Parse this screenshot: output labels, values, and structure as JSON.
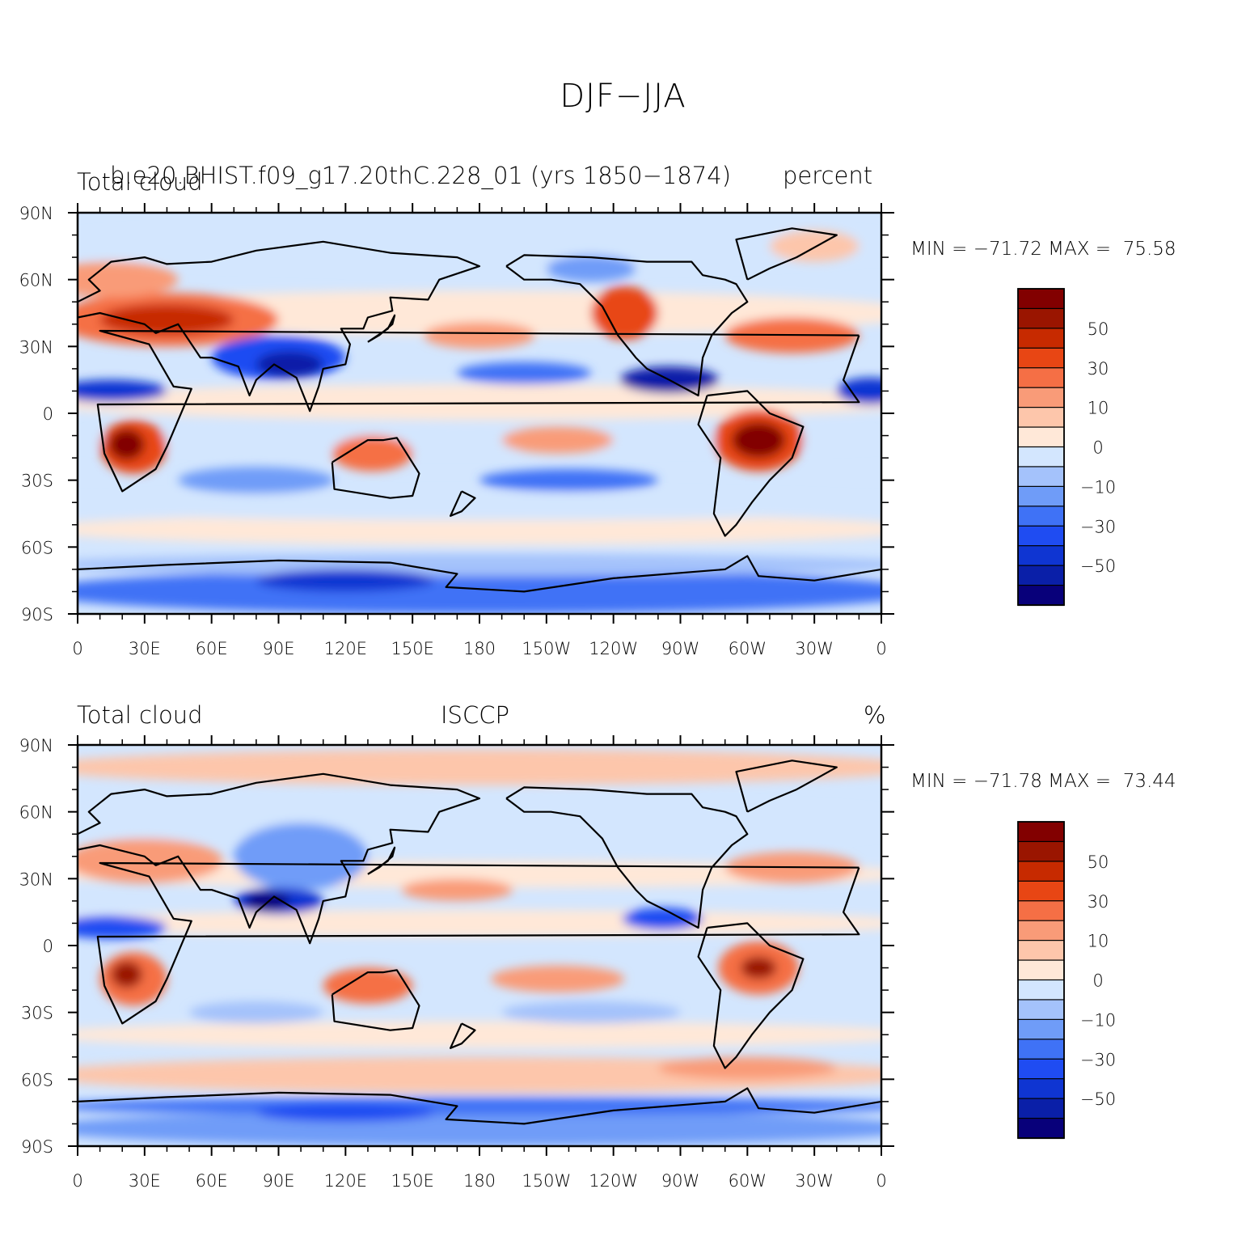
{
  "figure": {
    "title": "DJF−JJA"
  },
  "colors": {
    "levels": [
      "#08007a",
      "#0a1fa8",
      "#0f35d2",
      "#1f4cf2",
      "#3f72f6",
      "#6f9cf8",
      "#a4c2fb",
      "#d3e6fe",
      "#ffe8d8",
      "#fdc6ab",
      "#f99b78",
      "#f56f45",
      "#e84614",
      "#c72a00",
      "#9a1500",
      "#820000"
    ]
  },
  "panels": [
    {
      "left_label": "Total cloud",
      "center_label": "b.e20.BHIST.f09_g17.20thC.228_01 (yrs 1850−1874)",
      "right_label": "percent",
      "stats": "MIN = −71.72 MAX =  75.58",
      "min": -71.72,
      "max": 75.58
    },
    {
      "left_label": "Total cloud",
      "center_label": "ISCCP",
      "right_label": "%",
      "stats": "MIN = −71.78 MAX =  73.44",
      "min": -71.78,
      "max": 73.44
    }
  ],
  "axes": {
    "x_ticks": [
      "0",
      "30E",
      "60E",
      "90E",
      "120E",
      "150E",
      "180",
      "150W",
      "120W",
      "90W",
      "60W",
      "30W",
      "0"
    ],
    "y_ticks": [
      "90N",
      "60N",
      "30N",
      "0",
      "30S",
      "60S",
      "90S"
    ]
  },
  "colorbar": {
    "labels": [
      "50",
      "30",
      "10",
      "0",
      "−10",
      "−30",
      "−50"
    ]
  }
}
